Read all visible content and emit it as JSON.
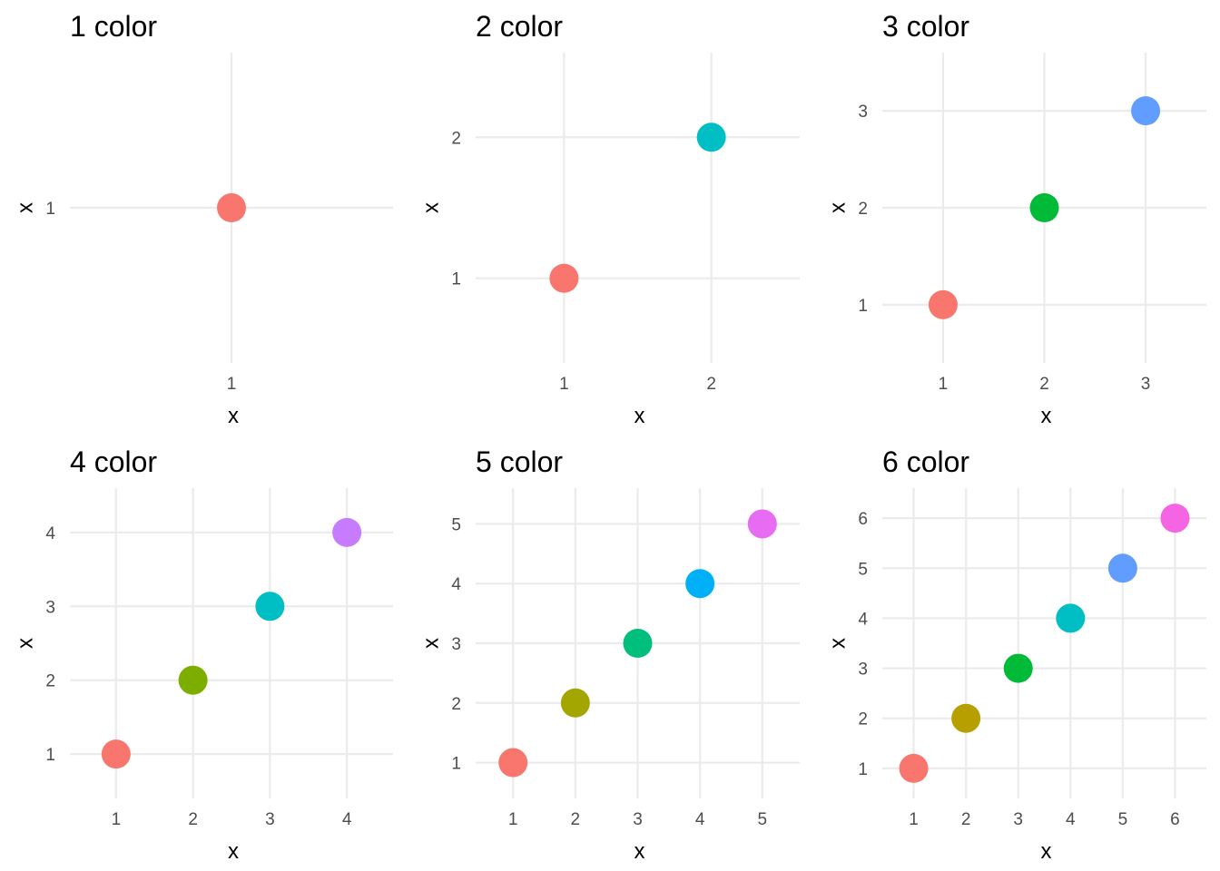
{
  "chart_data": [
    {
      "type": "scatter",
      "title": "1 color",
      "xlabel": "x",
      "ylabel": "x",
      "x": [
        1
      ],
      "y": [
        1
      ],
      "colors": [
        "#F8766D"
      ],
      "xlim": [
        0.4,
        1.6
      ],
      "ylim": [
        0.4,
        1.6
      ],
      "grid": true
    },
    {
      "type": "scatter",
      "title": "2 color",
      "xlabel": "x",
      "ylabel": "x",
      "x": [
        1,
        2
      ],
      "y": [
        1,
        2
      ],
      "colors": [
        "#F8766D",
        "#00BFC4"
      ],
      "xlim": [
        0.4,
        2.6
      ],
      "ylim": [
        0.4,
        2.6
      ],
      "grid": true
    },
    {
      "type": "scatter",
      "title": "3 color",
      "xlabel": "x",
      "ylabel": "x",
      "x": [
        1,
        2,
        3
      ],
      "y": [
        1,
        2,
        3
      ],
      "colors": [
        "#F8766D",
        "#00BA38",
        "#619CFF"
      ],
      "xlim": [
        0.4,
        3.6
      ],
      "ylim": [
        0.4,
        3.6
      ],
      "grid": true
    },
    {
      "type": "scatter",
      "title": "4 color",
      "xlabel": "x",
      "ylabel": "x",
      "x": [
        1,
        2,
        3,
        4
      ],
      "y": [
        1,
        2,
        3,
        4
      ],
      "colors": [
        "#F8766D",
        "#7CAE00",
        "#00BFC4",
        "#C77CFF"
      ],
      "xlim": [
        0.4,
        4.6
      ],
      "ylim": [
        0.4,
        4.6
      ],
      "grid": true
    },
    {
      "type": "scatter",
      "title": "5 color",
      "xlabel": "x",
      "ylabel": "x",
      "x": [
        1,
        2,
        3,
        4,
        5
      ],
      "y": [
        1,
        2,
        3,
        4,
        5
      ],
      "colors": [
        "#F8766D",
        "#A3A500",
        "#00BF7D",
        "#00B0F6",
        "#E76BF3"
      ],
      "xlim": [
        0.4,
        5.6
      ],
      "ylim": [
        0.4,
        5.6
      ],
      "grid": true
    },
    {
      "type": "scatter",
      "title": "6 color",
      "xlabel": "x",
      "ylabel": "x",
      "x": [
        1,
        2,
        3,
        4,
        5,
        6
      ],
      "y": [
        1,
        2,
        3,
        4,
        5,
        6
      ],
      "colors": [
        "#F8766D",
        "#B79F00",
        "#00BA38",
        "#00BFC4",
        "#619CFF",
        "#F564E3"
      ],
      "xlim": [
        0.4,
        6.6
      ],
      "ylim": [
        0.4,
        6.6
      ],
      "grid": true
    }
  ]
}
